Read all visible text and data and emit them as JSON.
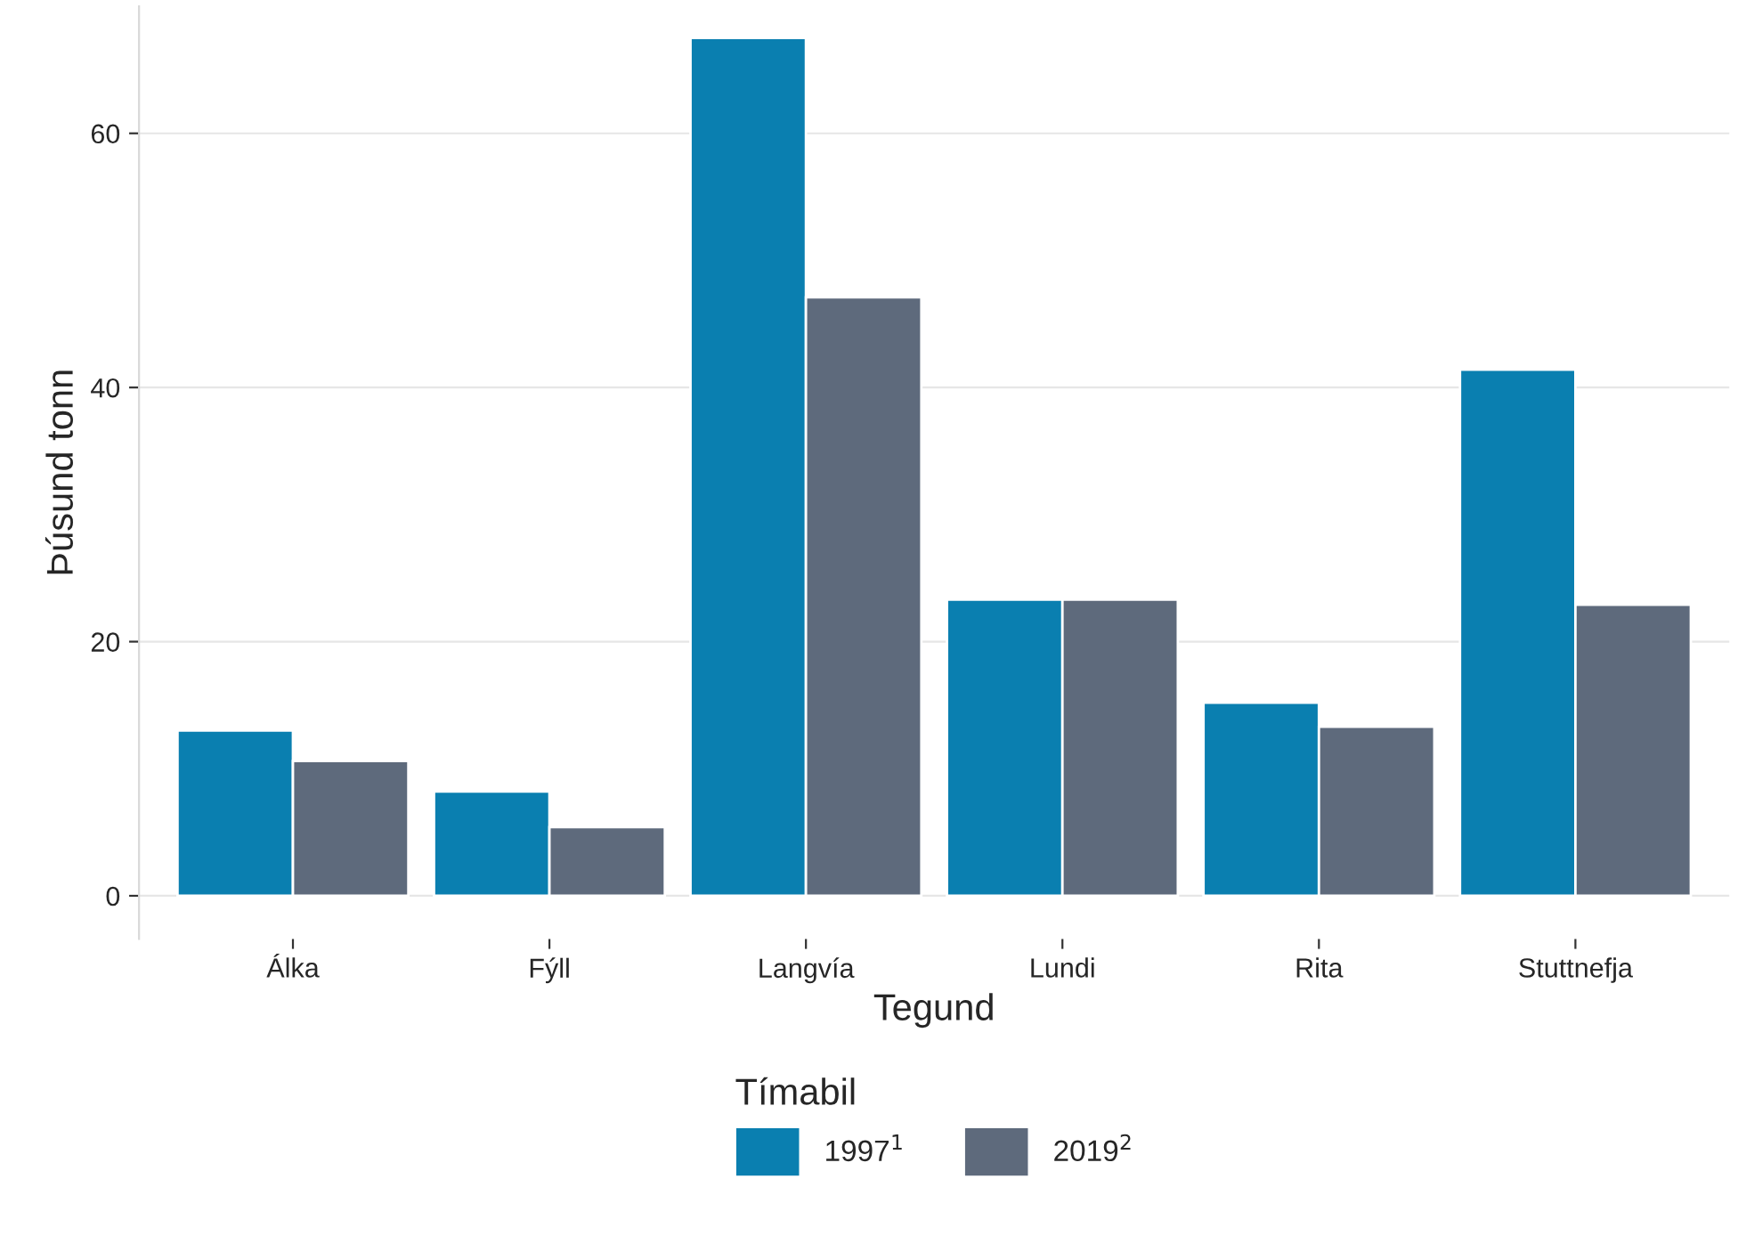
{
  "chart_data": {
    "type": "bar",
    "xlabel": "Tegund",
    "ylabel": "Þúsund tonn",
    "legend_title": "Tímabil",
    "categories": [
      "Álka",
      "Fýll",
      "Langvía",
      "Lundi",
      "Rita",
      "Stuttnefja"
    ],
    "series": [
      {
        "name": "1997$^{1}$",
        "color": "#0a7fb0",
        "values": [
          13.0,
          8.2,
          67.5,
          23.3,
          15.2,
          41.4
        ]
      },
      {
        "name": "2019$^{2}$",
        "color": "#5e6a7c",
        "values": [
          10.6,
          5.4,
          47.1,
          23.3,
          13.3,
          22.9
        ]
      }
    ],
    "ylim": [
      -3.4,
      70
    ],
    "yticks": [
      0,
      20,
      40,
      60
    ],
    "grid": "y",
    "legend": "bottom"
  }
}
